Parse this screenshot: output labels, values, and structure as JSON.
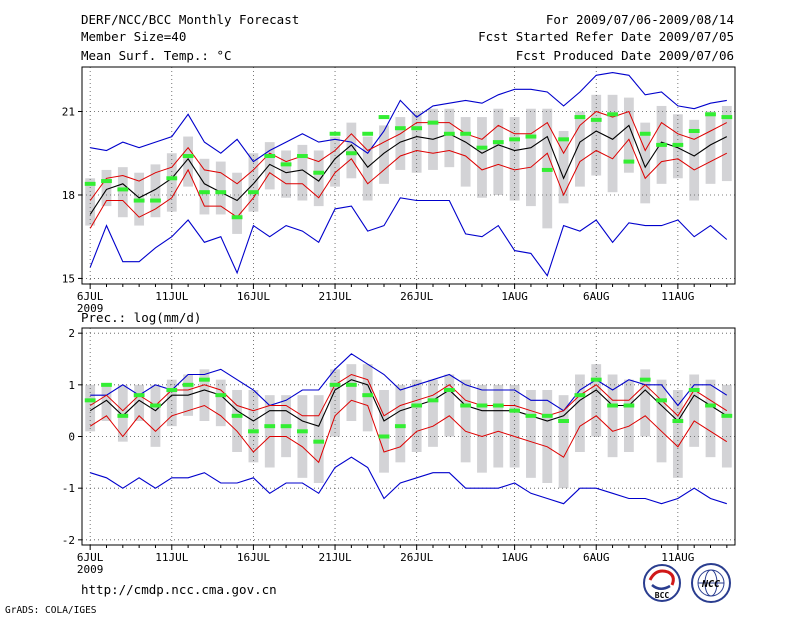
{
  "header": {
    "title": "DERF/NCC/BCC Monthly Forecast",
    "member_size": "Member Size=40",
    "variable1": "Mean Surf. Temp.: °C",
    "period": "For 2009/07/06-2009/08/14",
    "started_refer": "Fcst Started Refer Date 2009/07/05",
    "produced": "Fcst Produced Date 2009/07/06"
  },
  "footer": {
    "url": "http://cmdp.ncc.cma.gov.cn",
    "credit": "GrADS: COLA/IGES",
    "logo_bcc": "BCC",
    "logo_ncc": "NCC"
  },
  "colors": {
    "max_min": "#0000cc",
    "mean": "#000000",
    "spread": "#dd0000",
    "box": "#d3d3d6",
    "obs": "#33ee33",
    "grid": "#555555"
  },
  "chart_data": [
    {
      "type": "line",
      "title": "Mean Surf. Temp.: °C",
      "xlabel": "",
      "ylabel": "Mean Surf. Temp. (°C)",
      "x_ticks": [
        "6JUL",
        "11JUL",
        "16JUL",
        "21JUL",
        "26JUL",
        "1AUG",
        "6AUG",
        "11AUG"
      ],
      "x_sublabel": "2009",
      "days": 40,
      "xlim": [
        0.5,
        40.5
      ],
      "ylim": [
        14.8,
        22.6
      ],
      "y_ticks": [
        15,
        18,
        21
      ],
      "grid": true,
      "series": [
        {
          "name": "max",
          "values": [
            19.7,
            19.6,
            19.9,
            19.7,
            19.9,
            20.1,
            20.9,
            19.9,
            19.5,
            20.0,
            19.2,
            19.6,
            19.9,
            20.2,
            19.9,
            20.0,
            19.9,
            19.5,
            20.3,
            21.4,
            20.8,
            21.2,
            21.3,
            21.4,
            21.3,
            21.6,
            21.8,
            21.8,
            21.7,
            21.2,
            21.7,
            22.3,
            22.4,
            22.3,
            21.6,
            21.7,
            21.2,
            21.1,
            21.3,
            21.4
          ]
        },
        {
          "name": "mean_plus_sd",
          "values": [
            17.8,
            18.6,
            18.7,
            18.5,
            18.8,
            19.0,
            19.7,
            18.9,
            18.8,
            18.4,
            18.9,
            19.5,
            19.2,
            19.4,
            19.2,
            19.6,
            20.2,
            19.6,
            19.9,
            20.2,
            20.6,
            20.6,
            20.6,
            20.2,
            20.0,
            20.5,
            20.2,
            20.2,
            20.6,
            19.5,
            20.5,
            21.0,
            20.8,
            21.0,
            19.6,
            20.6,
            20.2,
            20.0,
            20.3,
            20.6
          ]
        },
        {
          "name": "mean",
          "values": [
            17.3,
            18.2,
            18.4,
            17.9,
            18.2,
            18.6,
            19.3,
            18.4,
            18.1,
            17.8,
            18.4,
            19.1,
            18.8,
            18.9,
            18.5,
            19.3,
            19.8,
            19.0,
            19.5,
            19.9,
            20.1,
            20.0,
            20.2,
            19.9,
            19.5,
            19.8,
            19.6,
            19.7,
            20.1,
            18.6,
            19.9,
            20.3,
            20.0,
            20.5,
            19.0,
            19.9,
            19.7,
            19.4,
            19.8,
            20.1
          ]
        },
        {
          "name": "mean_minus_sd",
          "values": [
            16.8,
            17.8,
            17.8,
            17.2,
            17.5,
            17.9,
            18.9,
            17.6,
            17.6,
            17.2,
            17.9,
            18.8,
            18.4,
            18.4,
            17.9,
            18.8,
            19.3,
            18.4,
            18.9,
            19.4,
            19.6,
            19.5,
            19.6,
            19.4,
            18.9,
            19.1,
            18.9,
            19.0,
            19.5,
            18.0,
            19.2,
            19.6,
            19.3,
            20.0,
            18.6,
            19.2,
            19.3,
            18.9,
            19.2,
            19.5
          ]
        },
        {
          "name": "min",
          "values": [
            15.4,
            16.9,
            15.6,
            15.6,
            16.1,
            16.5,
            17.1,
            16.3,
            16.5,
            15.2,
            16.9,
            16.5,
            16.9,
            16.7,
            16.3,
            17.5,
            17.6,
            16.7,
            16.9,
            17.9,
            17.8,
            17.8,
            17.8,
            16.6,
            16.5,
            16.9,
            16.0,
            15.9,
            15.1,
            16.9,
            16.7,
            17.1,
            16.3,
            17.0,
            16.9,
            16.9,
            17.1,
            16.5,
            16.9,
            16.4
          ]
        },
        {
          "name": "obs",
          "values": [
            18.4,
            18.5,
            18.2,
            17.8,
            17.8,
            18.6,
            19.4,
            18.1,
            18.1,
            17.2,
            18.1,
            19.4,
            19.1,
            19.4,
            18.8,
            20.2,
            19.5,
            20.2,
            20.8,
            20.4,
            20.4,
            20.6,
            20.2,
            20.2,
            19.7,
            19.9,
            20.0,
            20.1,
            18.9,
            20.0,
            20.8,
            20.7,
            20.9,
            19.2,
            20.2,
            19.8,
            19.8,
            20.3,
            20.9,
            20.8
          ]
        },
        {
          "name": "box_top",
          "values": [
            18.6,
            18.9,
            19.0,
            18.8,
            19.1,
            19.5,
            20.1,
            19.3,
            19.2,
            18.8,
            19.5,
            19.9,
            19.6,
            19.8,
            19.6,
            20.1,
            20.6,
            20.1,
            20.5,
            20.8,
            21.0,
            21.1,
            21.1,
            20.8,
            20.8,
            21.1,
            20.8,
            21.1,
            21.1,
            20.3,
            21.0,
            21.6,
            21.6,
            21.5,
            20.6,
            21.2,
            20.9,
            20.7,
            21.0,
            21.2
          ]
        },
        {
          "name": "box_bottom",
          "values": [
            16.9,
            17.6,
            17.2,
            16.9,
            17.2,
            17.4,
            18.3,
            17.3,
            17.3,
            16.6,
            17.4,
            18.2,
            17.9,
            17.8,
            17.6,
            18.3,
            18.6,
            17.8,
            18.4,
            18.9,
            18.8,
            18.9,
            19.0,
            18.3,
            17.9,
            18.0,
            17.8,
            17.6,
            16.8,
            17.7,
            18.3,
            18.7,
            18.1,
            18.8,
            17.7,
            18.4,
            18.6,
            17.8,
            18.4,
            18.5
          ]
        }
      ]
    },
    {
      "type": "line",
      "title": "Prec.: log(mm/d)",
      "xlabel": "",
      "ylabel": "Prec. log(mm/d)",
      "x_ticks": [
        "6JUL",
        "11JUL",
        "16JUL",
        "21JUL",
        "26JUL",
        "1AUG",
        "6AUG",
        "11AUG"
      ],
      "x_sublabel": "2009",
      "days": 40,
      "xlim": [
        0.5,
        40.5
      ],
      "ylim": [
        -2.1,
        2.1
      ],
      "y_ticks": [
        -2,
        -1,
        0,
        1,
        2
      ],
      "grid": true,
      "series": [
        {
          "name": "max",
          "values": [
            0.8,
            0.8,
            1.0,
            0.8,
            1.0,
            0.9,
            1.2,
            1.2,
            1.3,
            1.1,
            0.9,
            0.6,
            0.7,
            0.9,
            0.9,
            1.3,
            1.6,
            1.4,
            1.2,
            0.9,
            1.0,
            1.1,
            1.2,
            1.0,
            0.9,
            0.9,
            0.9,
            0.7,
            0.7,
            0.5,
            0.9,
            1.1,
            0.9,
            1.1,
            1.0,
            1.0,
            0.6,
            1.0,
            1.0,
            0.8
          ]
        },
        {
          "name": "mean_plus_sd",
          "values": [
            0.6,
            0.8,
            0.5,
            0.8,
            0.6,
            0.9,
            0.9,
            1.0,
            0.9,
            0.6,
            0.5,
            0.6,
            0.6,
            0.4,
            0.4,
            1.0,
            1.2,
            1.1,
            0.4,
            0.6,
            0.7,
            0.8,
            1.0,
            0.7,
            0.6,
            0.6,
            0.6,
            0.5,
            0.4,
            0.5,
            0.8,
            1.0,
            0.7,
            0.7,
            1.0,
            0.7,
            0.4,
            0.9,
            0.7,
            0.5
          ]
        },
        {
          "name": "mean",
          "values": [
            0.5,
            0.7,
            0.4,
            0.7,
            0.5,
            0.8,
            0.8,
            0.9,
            0.8,
            0.5,
            0.3,
            0.5,
            0.5,
            0.3,
            0.2,
            0.9,
            1.1,
            1.0,
            0.3,
            0.5,
            0.6,
            0.7,
            0.9,
            0.6,
            0.5,
            0.5,
            0.5,
            0.4,
            0.3,
            0.4,
            0.7,
            0.9,
            0.6,
            0.6,
            0.9,
            0.6,
            0.3,
            0.8,
            0.6,
            0.4
          ]
        },
        {
          "name": "mean_minus_sd",
          "values": [
            0.2,
            0.4,
            0.0,
            0.4,
            0.1,
            0.4,
            0.5,
            0.6,
            0.4,
            0.1,
            -0.3,
            0.0,
            0.0,
            -0.2,
            -0.5,
            0.4,
            0.7,
            0.6,
            -0.3,
            -0.2,
            0.1,
            0.2,
            0.4,
            0.1,
            0.0,
            0.1,
            0.0,
            -0.1,
            -0.2,
            -0.4,
            0.2,
            0.4,
            0.1,
            0.2,
            0.4,
            0.1,
            -0.2,
            0.3,
            0.1,
            -0.1
          ]
        },
        {
          "name": "min",
          "values": [
            -0.7,
            -0.8,
            -1.0,
            -0.8,
            -1.0,
            -0.8,
            -0.8,
            -0.7,
            -0.9,
            -0.9,
            -0.8,
            -1.1,
            -0.9,
            -0.9,
            -1.1,
            -0.6,
            -0.4,
            -0.6,
            -1.2,
            -0.9,
            -0.8,
            -0.7,
            -0.7,
            -1.0,
            -1.0,
            -1.0,
            -0.9,
            -1.1,
            -1.2,
            -1.3,
            -1.0,
            -1.0,
            -1.1,
            -1.2,
            -1.2,
            -1.3,
            -1.2,
            -1.0,
            -1.2,
            -1.3
          ]
        },
        {
          "name": "obs",
          "values": [
            0.7,
            1.0,
            0.4,
            0.8,
            0.6,
            0.9,
            1.0,
            1.1,
            0.8,
            0.4,
            0.1,
            0.2,
            0.2,
            0.1,
            -0.1,
            1.0,
            1.0,
            0.8,
            0.0,
            0.2,
            0.6,
            0.7,
            0.9,
            0.6,
            0.6,
            0.6,
            0.5,
            0.4,
            0.4,
            0.3,
            0.8,
            1.1,
            0.6,
            0.6,
            1.1,
            0.7,
            0.3,
            0.9,
            0.6,
            0.4
          ]
        },
        {
          "name": "box_top",
          "values": [
            1.0,
            1.0,
            1.0,
            1.0,
            1.0,
            1.1,
            1.2,
            1.3,
            1.1,
            0.9,
            0.9,
            0.8,
            0.8,
            0.8,
            0.8,
            1.3,
            1.4,
            1.4,
            0.9,
            1.0,
            1.1,
            1.1,
            1.2,
            1.1,
            1.0,
            1.0,
            1.0,
            0.9,
            0.9,
            0.8,
            1.2,
            1.4,
            1.2,
            1.1,
            1.3,
            1.1,
            0.9,
            1.2,
            1.1,
            1.0
          ]
        },
        {
          "name": "box_bottom",
          "values": [
            0.1,
            0.3,
            -0.1,
            0.3,
            -0.2,
            0.2,
            0.4,
            0.3,
            0.2,
            -0.3,
            -0.5,
            -0.6,
            -0.4,
            -0.8,
            -0.9,
            0.0,
            0.3,
            0.1,
            -0.7,
            -0.5,
            -0.3,
            -0.2,
            0.0,
            -0.5,
            -0.7,
            -0.6,
            -0.6,
            -0.8,
            -0.9,
            -1.0,
            -0.3,
            0.0,
            -0.4,
            -0.3,
            0.0,
            -0.5,
            -0.8,
            -0.2,
            -0.4,
            -0.6
          ]
        }
      ]
    }
  ]
}
